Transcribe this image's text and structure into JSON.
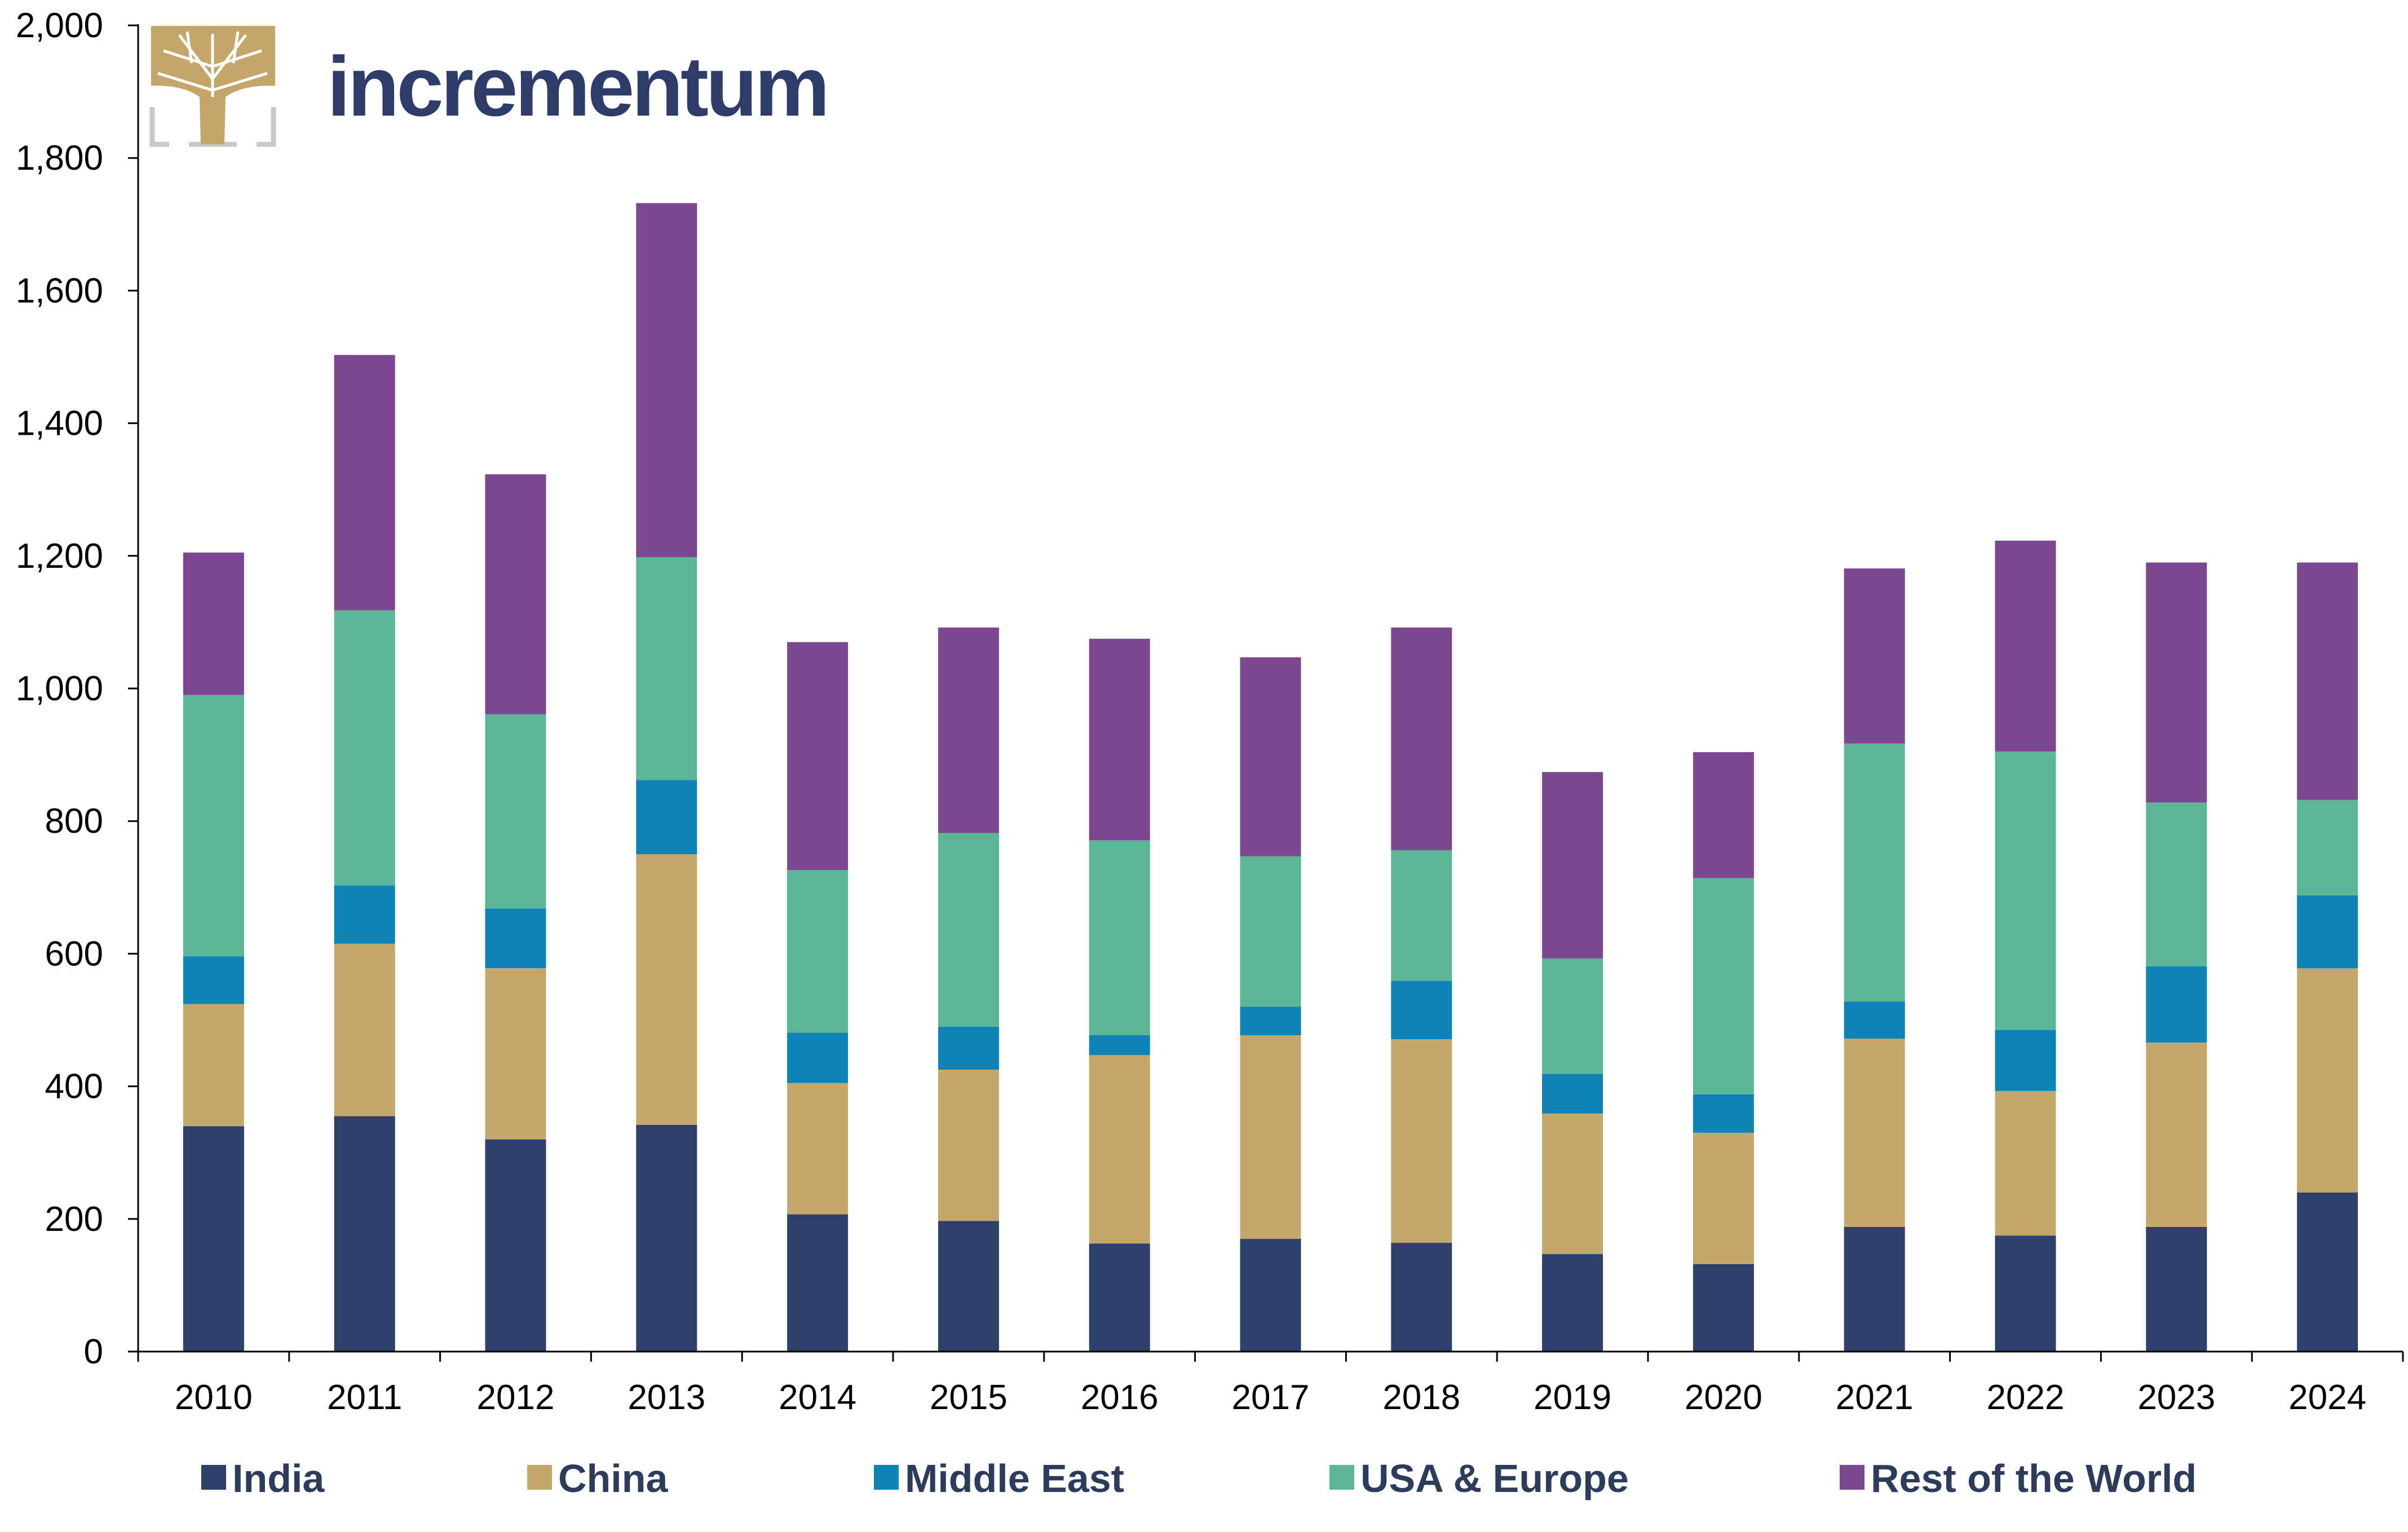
{
  "brand": {
    "name": "incrementum",
    "logo_icon": "tree-logo-icon",
    "colors": {
      "text": "#2e3c6a",
      "logo": "#c4a66a",
      "frame": "#c8c8c8"
    }
  },
  "chart_data": {
    "type": "bar",
    "stacked": true,
    "title": "",
    "xlabel": "",
    "ylabel": "",
    "ylim": [
      0,
      2000
    ],
    "y_ticks": [
      "0",
      "200",
      "400",
      "600",
      "800",
      "1,000",
      "1,200",
      "1,400",
      "1,600",
      "1,800",
      "2,000"
    ],
    "grid": false,
    "legend_position": "bottom",
    "categories": [
      "2010",
      "2011",
      "2012",
      "2013",
      "2014",
      "2015",
      "2016",
      "2017",
      "2018",
      "2019",
      "2020",
      "2021",
      "2022",
      "2023",
      "2024"
    ],
    "series": [
      {
        "name": "India",
        "color": "#2e4069",
        "values": [
          340,
          355,
          320,
          342,
          207,
          197,
          163,
          170,
          164,
          147,
          132,
          188,
          175,
          188,
          240
        ]
      },
      {
        "name": "China",
        "color": "#c4a86b",
        "values": [
          184,
          260,
          258,
          408,
          198,
          228,
          284,
          307,
          307,
          212,
          198,
          284,
          218,
          278,
          338
        ]
      },
      {
        "name": "Middle East",
        "color": "#0e83b6",
        "values": [
          72,
          88,
          90,
          112,
          76,
          65,
          30,
          43,
          88,
          60,
          58,
          56,
          92,
          115,
          110
        ]
      },
      {
        "name": "USA & Europe",
        "color": "#5ab695",
        "values": [
          394,
          415,
          293,
          336,
          245,
          292,
          294,
          227,
          197,
          174,
          326,
          389,
          420,
          247,
          144
        ]
      },
      {
        "name": "Rest of the World",
        "color": "#7d4790",
        "values": [
          215,
          385,
          362,
          534,
          344,
          310,
          304,
          300,
          336,
          281,
          190,
          264,
          318,
          362,
          358
        ]
      }
    ]
  }
}
